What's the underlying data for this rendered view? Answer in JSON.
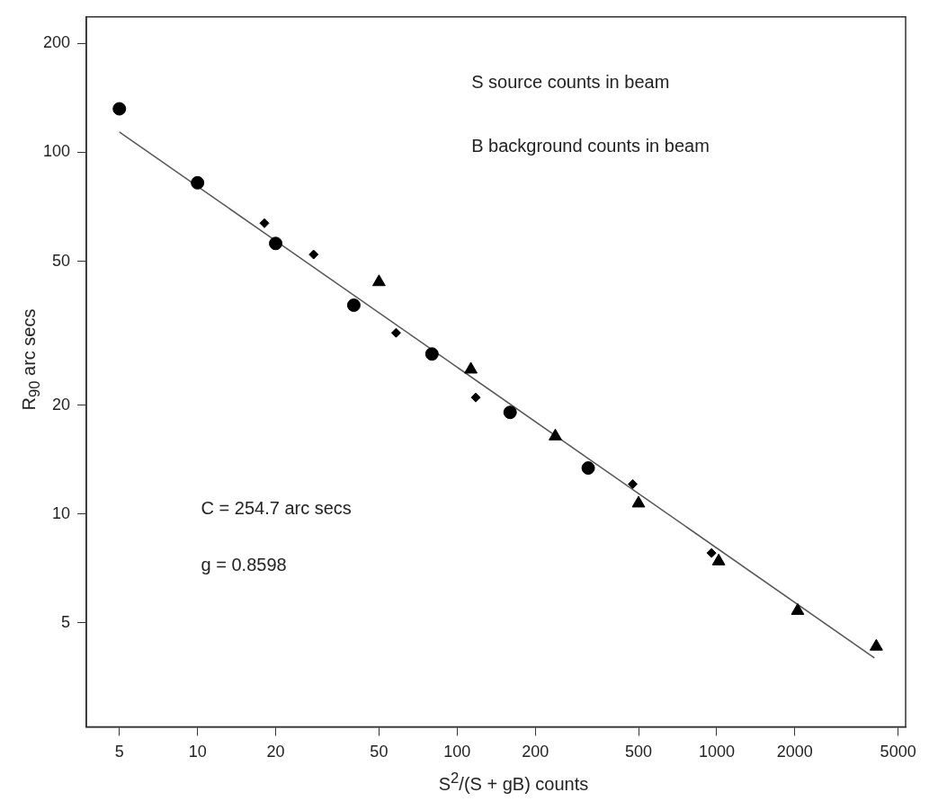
{
  "chart_data": {
    "type": "scatter",
    "xlabel": "S$^{2}$/(S + gB) counts",
    "ylabel": "R$_{90}$ arc secs",
    "log": "xy",
    "grid": false,
    "xlim": [
      3.73,
      5345
    ],
    "ylim": [
      2.58,
      237
    ],
    "xticks": [
      5,
      10,
      20,
      50,
      100,
      200,
      500,
      1000,
      2000,
      5000
    ],
    "yticks": [
      5,
      10,
      20,
      50,
      100,
      200
    ],
    "annotations": [
      "S source counts in beam",
      "B background counts in beam",
      "C = 254.7 arc secs",
      "g = 0.8598"
    ],
    "series": [
      {
        "color": "#000000",
        "marker": "circle",
        "x": [
          5,
          10,
          20,
          40,
          80,
          160,
          320
        ],
        "values": [
          132,
          82.4,
          56,
          37.8,
          27.7,
          19.1,
          13.4
        ]
      },
      {
        "color": "#000000",
        "marker": "diamond",
        "x": [
          18.1,
          28,
          58.2,
          118,
          475,
          955
        ],
        "values": [
          63.7,
          52.2,
          31.7,
          21,
          12.1,
          7.8
        ]
      },
      {
        "color": "#000000",
        "marker": "triangle",
        "x": [
          50,
          113,
          239,
          500,
          1018,
          2051,
          4121
        ],
        "values": [
          43.8,
          25.1,
          16.4,
          10.7,
          7.4,
          5.4,
          4.3
        ]
      },
      {
        "type": "line",
        "color": "#555555",
        "marker": "none",
        "x": [
          5,
          4054
        ],
        "values": [
          113.9,
          4.0
        ]
      }
    ]
  }
}
